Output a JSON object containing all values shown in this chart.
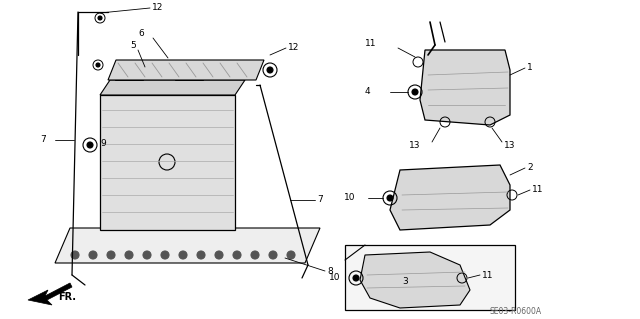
{
  "bg_color": "#ffffff",
  "lc": "#000000",
  "part_code": "SE03-R0600A",
  "fig_w": 6.4,
  "fig_h": 3.19,
  "dpi": 100
}
